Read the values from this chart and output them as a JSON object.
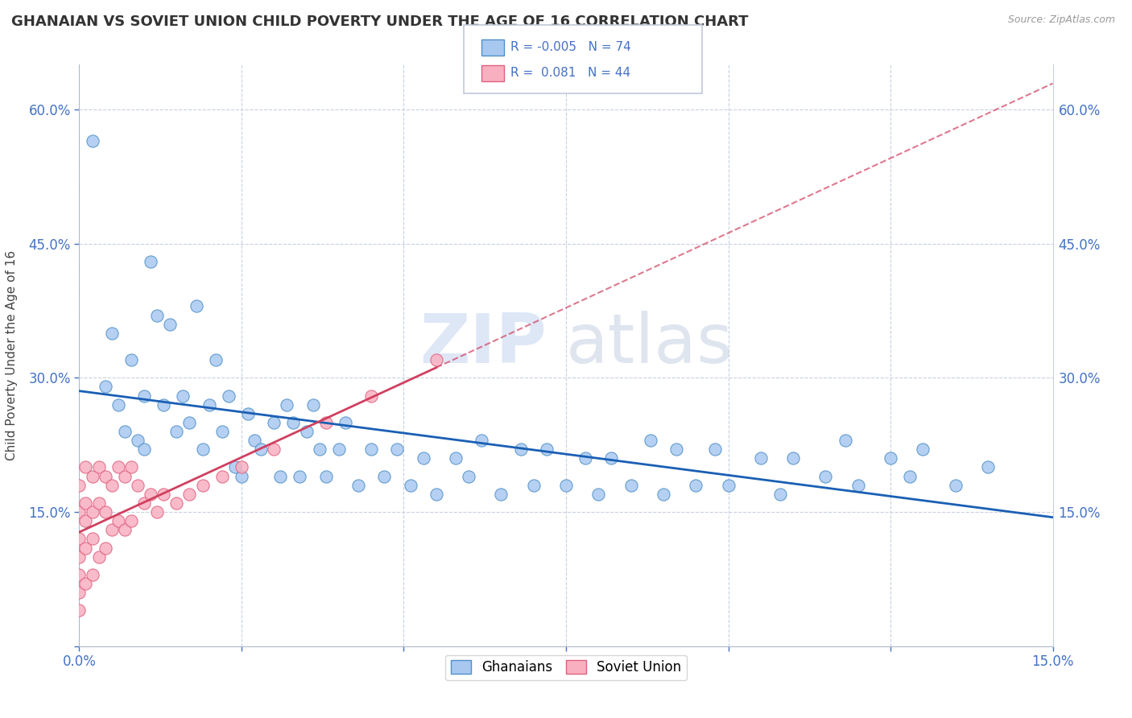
{
  "title": "GHANAIAN VS SOVIET UNION CHILD POVERTY UNDER THE AGE OF 16 CORRELATION CHART",
  "source": "Source: ZipAtlas.com",
  "ylabel_label": "Child Poverty Under the Age of 16",
  "xlim": [
    0.0,
    0.15
  ],
  "ylim": [
    0.0,
    0.65
  ],
  "xtick_positions": [
    0.0,
    0.025,
    0.05,
    0.075,
    0.1,
    0.125,
    0.15
  ],
  "ytick_positions": [
    0.0,
    0.15,
    0.3,
    0.45,
    0.6
  ],
  "legend_r1": "-0.005",
  "legend_n1": "74",
  "legend_r2": "0.081",
  "legend_n2": "44",
  "watermark_zip": "ZIP",
  "watermark_atlas": "atlas",
  "blue_scatter_color": "#a8c8f0",
  "blue_scatter_edge": "#5090c8",
  "pink_scatter_color": "#f8b0c0",
  "pink_scatter_edge": "#e06080",
  "blue_line_color": "#1a5fb4",
  "pink_line_color": "#d04060",
  "grid_color": "#c8d0e0",
  "tick_color": "#4472c4",
  "ghana_x": [
    0.002,
    0.004,
    0.005,
    0.006,
    0.007,
    0.008,
    0.009,
    0.01,
    0.01,
    0.011,
    0.012,
    0.013,
    0.014,
    0.015,
    0.016,
    0.017,
    0.018,
    0.019,
    0.02,
    0.021,
    0.022,
    0.023,
    0.024,
    0.025,
    0.026,
    0.027,
    0.028,
    0.03,
    0.031,
    0.032,
    0.033,
    0.034,
    0.035,
    0.036,
    0.037,
    0.038,
    0.04,
    0.041,
    0.043,
    0.045,
    0.047,
    0.049,
    0.051,
    0.053,
    0.055,
    0.058,
    0.06,
    0.062,
    0.065,
    0.068,
    0.07,
    0.072,
    0.075,
    0.078,
    0.08,
    0.082,
    0.085,
    0.088,
    0.09,
    0.092,
    0.095,
    0.098,
    0.1,
    0.105,
    0.108,
    0.11,
    0.115,
    0.118,
    0.12,
    0.125,
    0.128,
    0.13,
    0.135,
    0.14
  ],
  "ghana_y": [
    0.565,
    0.29,
    0.35,
    0.27,
    0.24,
    0.32,
    0.23,
    0.28,
    0.22,
    0.43,
    0.37,
    0.27,
    0.36,
    0.24,
    0.28,
    0.25,
    0.38,
    0.22,
    0.27,
    0.32,
    0.24,
    0.28,
    0.2,
    0.19,
    0.26,
    0.23,
    0.22,
    0.25,
    0.19,
    0.27,
    0.25,
    0.19,
    0.24,
    0.27,
    0.22,
    0.19,
    0.22,
    0.25,
    0.18,
    0.22,
    0.19,
    0.22,
    0.18,
    0.21,
    0.17,
    0.21,
    0.19,
    0.23,
    0.17,
    0.22,
    0.18,
    0.22,
    0.18,
    0.21,
    0.17,
    0.21,
    0.18,
    0.23,
    0.17,
    0.22,
    0.18,
    0.22,
    0.18,
    0.21,
    0.17,
    0.21,
    0.19,
    0.23,
    0.18,
    0.21,
    0.19,
    0.22,
    0.18,
    0.2
  ],
  "soviet_x": [
    0.0,
    0.0,
    0.0,
    0.0,
    0.0,
    0.0,
    0.0,
    0.001,
    0.001,
    0.001,
    0.001,
    0.001,
    0.002,
    0.002,
    0.002,
    0.002,
    0.003,
    0.003,
    0.003,
    0.004,
    0.004,
    0.004,
    0.005,
    0.005,
    0.006,
    0.006,
    0.007,
    0.007,
    0.008,
    0.008,
    0.009,
    0.01,
    0.011,
    0.012,
    0.013,
    0.015,
    0.017,
    0.019,
    0.022,
    0.025,
    0.03,
    0.038,
    0.045,
    0.055
  ],
  "soviet_y": [
    0.18,
    0.15,
    0.12,
    0.1,
    0.08,
    0.06,
    0.04,
    0.2,
    0.16,
    0.14,
    0.11,
    0.07,
    0.19,
    0.15,
    0.12,
    0.08,
    0.2,
    0.16,
    0.1,
    0.19,
    0.15,
    0.11,
    0.18,
    0.13,
    0.2,
    0.14,
    0.19,
    0.13,
    0.2,
    0.14,
    0.18,
    0.16,
    0.17,
    0.15,
    0.17,
    0.16,
    0.17,
    0.18,
    0.19,
    0.2,
    0.22,
    0.25,
    0.28,
    0.32
  ]
}
